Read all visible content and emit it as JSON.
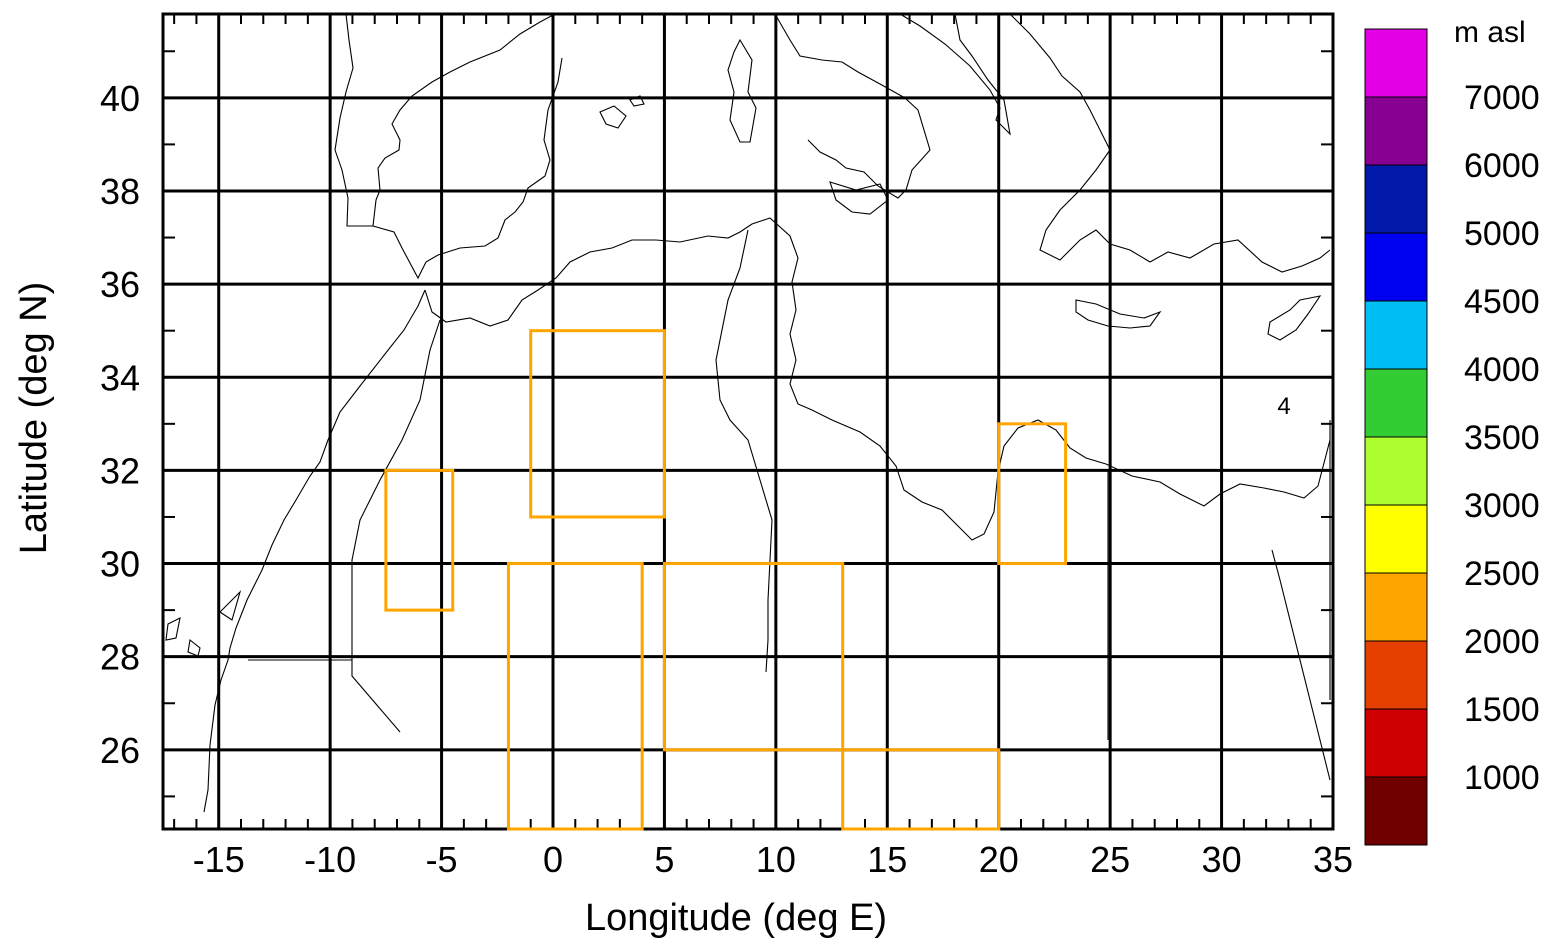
{
  "map": {
    "xlabel": "Longitude (deg E)",
    "ylabel": "Latitude (deg N)",
    "xlim": [
      -17.5,
      35
    ],
    "ylim": [
      24.3,
      41.8
    ],
    "x_ticks": [
      -15,
      -10,
      -5,
      0,
      5,
      10,
      15,
      20,
      25,
      30,
      35
    ],
    "x_tick_labels": [
      "-15",
      "-10",
      "-5",
      "0",
      "5",
      "10",
      "15",
      "20",
      "25",
      "30",
      "35"
    ],
    "y_ticks": [
      26,
      28,
      30,
      32,
      34,
      36,
      38,
      40
    ],
    "y_tick_labels": [
      "26",
      "28",
      "30",
      "32",
      "34",
      "36",
      "38",
      "40"
    ],
    "grid": true,
    "box_color": "#FFA500",
    "boxes": [
      {
        "lon": [
          -1,
          5
        ],
        "lat": [
          31,
          35
        ]
      },
      {
        "lon": [
          -7.5,
          -4.5
        ],
        "lat": [
          29,
          32
        ]
      },
      {
        "lon": [
          20,
          23
        ],
        "lat": [
          30,
          33
        ]
      },
      {
        "lon": [
          -2,
          4
        ],
        "lat": [
          24.3,
          30
        ]
      },
      {
        "lon": [
          5,
          13
        ],
        "lat": [
          26,
          30
        ]
      },
      {
        "lon": [
          13,
          20
        ],
        "lat": [
          24.3,
          26
        ]
      }
    ],
    "box_segments": [
      {
        "lon": [
          13,
          20
        ],
        "lat": [
          26,
          26
        ]
      },
      {
        "lon": [
          20,
          20
        ],
        "lat": [
          24.3,
          26
        ]
      }
    ],
    "point_label": "4"
  },
  "colorbar": {
    "title": "m asl",
    "labels": [
      "7000",
      "6000",
      "5000",
      "4500",
      "4000",
      "3500",
      "3000",
      "2500",
      "2000",
      "1500",
      "1000"
    ],
    "colors_top_to_bottom": [
      "#E400E4",
      "#870092",
      "#0019A8",
      "#0000F0",
      "#00BDF4",
      "#33CC33",
      "#ADFF2F",
      "#FFFF00",
      "#FFA500",
      "#E54000",
      "#CE0000",
      "#700000"
    ]
  }
}
